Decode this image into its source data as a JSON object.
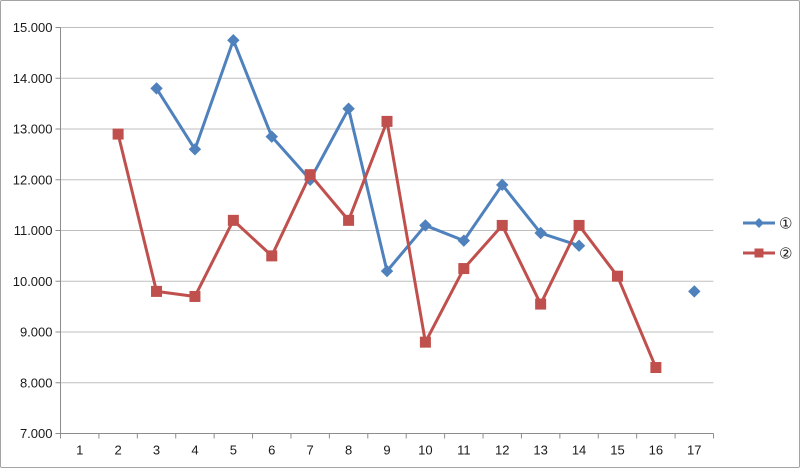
{
  "chart": {
    "background": "#ffffff",
    "border_color": "#a3a3a3",
    "gridline_color": "#bfbfbf",
    "axis_color": "#8c8c8c",
    "text_color": "#1a1a1a"
  },
  "chart_data": {
    "type": "line",
    "title": "",
    "xlabel": "",
    "ylabel": "",
    "grid": true,
    "legend_position": "right",
    "ylim": [
      7.0,
      15.0
    ],
    "ytick_values": [
      7,
      8,
      9,
      10,
      11,
      12,
      13,
      14,
      15
    ],
    "ytick_labels": [
      "7.000",
      "8.000",
      "9.000",
      "10.000",
      "11.000",
      "12.000",
      "13.000",
      "14.000",
      "15.000"
    ],
    "categories": [
      "1",
      "2",
      "3",
      "4",
      "5",
      "6",
      "7",
      "8",
      "9",
      "10",
      "11",
      "12",
      "13",
      "14",
      "15",
      "16",
      "17"
    ],
    "series": [
      {
        "name": "①",
        "color": "#4f81bd",
        "marker": "diamond",
        "values": [
          null,
          null,
          13.8,
          12.6,
          14.75,
          12.85,
          12.0,
          13.4,
          10.2,
          11.1,
          10.8,
          11.9,
          10.95,
          10.7,
          null,
          null,
          9.8
        ]
      },
      {
        "name": "②",
        "color": "#c0504d",
        "marker": "square",
        "values": [
          null,
          12.9,
          9.8,
          9.7,
          11.2,
          10.5,
          12.1,
          11.2,
          13.15,
          8.8,
          10.25,
          11.1,
          9.55,
          11.1,
          10.1,
          8.3,
          null
        ]
      }
    ]
  }
}
